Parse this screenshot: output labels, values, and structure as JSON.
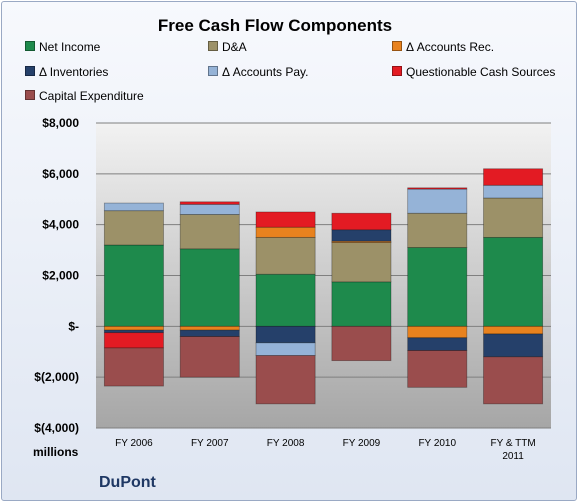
{
  "chart_data": {
    "type": "bar",
    "stacked": true,
    "title": "Free Cash Flow Components",
    "ylabel": "millions",
    "footer": "DuPont",
    "categories": [
      "FY 2006",
      "FY 2007",
      "FY 2008",
      "FY 2009",
      "FY 2010",
      "FY & TTM 2011"
    ],
    "category_lines": [
      [
        "FY 2006"
      ],
      [
        "FY 2007"
      ],
      [
        "FY 2008"
      ],
      [
        "FY 2009"
      ],
      [
        "FY 2010"
      ],
      [
        "FY & TTM",
        "2011"
      ]
    ],
    "ylim": [
      -4000,
      8000
    ],
    "yticks": [
      -4000,
      -2000,
      0,
      2000,
      4000,
      6000,
      8000
    ],
    "ytick_labels": [
      "$(4,000)",
      "$(2,000)",
      "$-",
      "$2,000",
      "$4,000",
      "$6,000",
      "$8,000"
    ],
    "grid": true,
    "legend_position": "top",
    "series": [
      {
        "name": "Net Income",
        "color": "#1e8a4c",
        "values": [
          3200,
          3050,
          2050,
          1750,
          3100,
          3500
        ]
      },
      {
        "name": "D&A",
        "color": "#9c9168",
        "values": [
          1350,
          1350,
          1450,
          1550,
          1350,
          1550
        ]
      },
      {
        "name": "Δ Accounts Rec.",
        "color": "#e8821e",
        "values": [
          -150,
          -150,
          400,
          50,
          -450,
          -300
        ]
      },
      {
        "name": "Δ Inventories",
        "color": "#25406a",
        "values": [
          -100,
          -250,
          -650,
          450,
          -500,
          -900
        ]
      },
      {
        "name": "Δ Accounts Pay.",
        "color": "#95b3d7",
        "values": [
          300,
          400,
          -500,
          0,
          950,
          500
        ]
      },
      {
        "name": "Questionable Cash Sources",
        "color": "#e31b23",
        "values": [
          0,
          100,
          600,
          650,
          50,
          650
        ]
      },
      {
        "name": "Capital Expenditure",
        "color": "#9a4d4d",
        "values": [
          -1500,
          -1600,
          -1900,
          -1350,
          -1450,
          -1850
        ]
      }
    ],
    "negative_offsets": [
      {
        "category": "FY 2006",
        "series": "Questionable Cash Sources",
        "value": -600
      }
    ]
  }
}
